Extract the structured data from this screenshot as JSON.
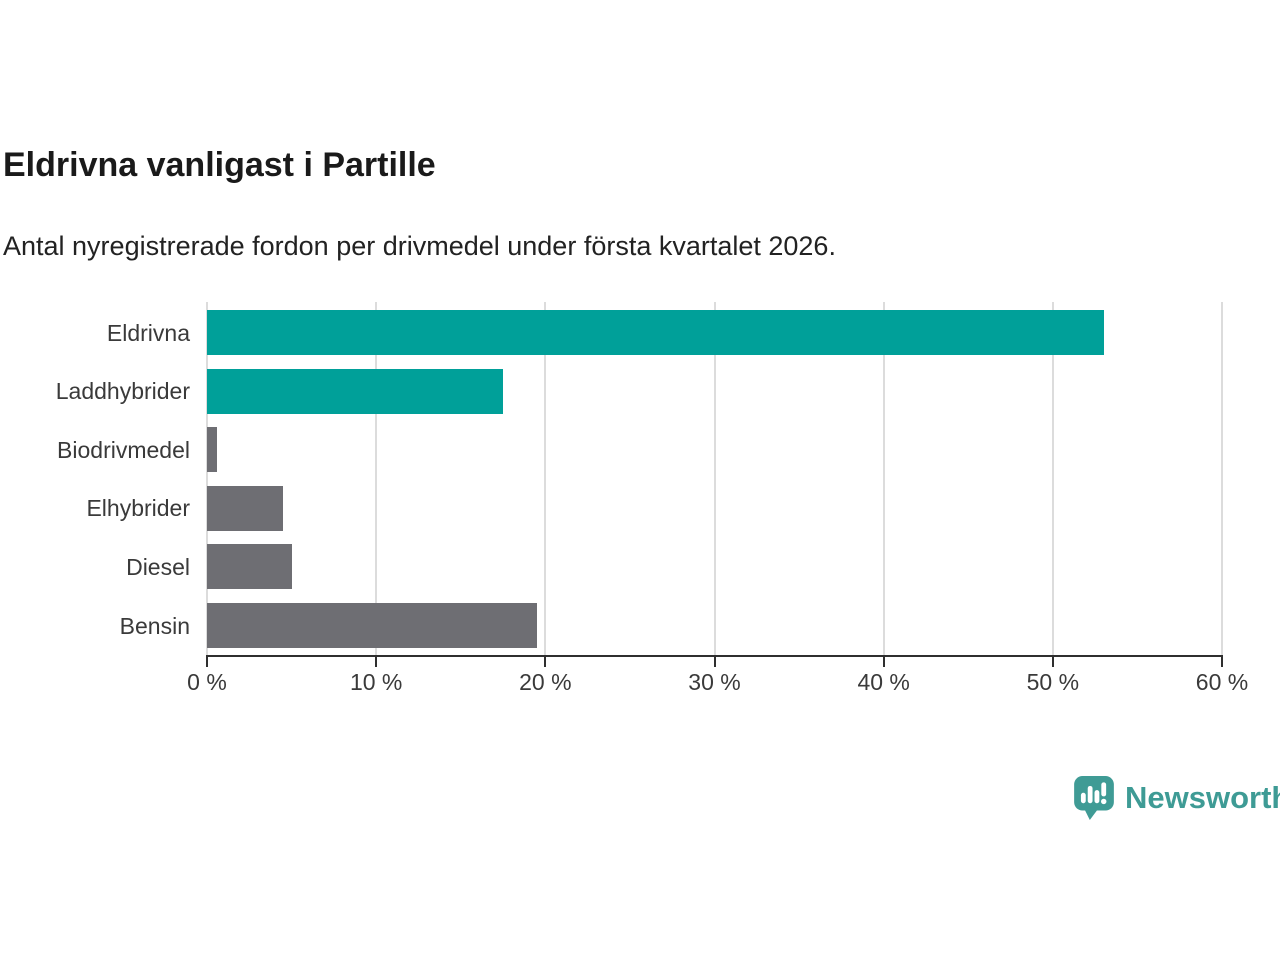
{
  "title": "Eldrivna vanligast i Partille",
  "subtitle": "Antal nyregistrerade fordon per drivmedel under första kvartalet 2026.",
  "logo": {
    "text": "Newsworthy",
    "color": "#3e9b95",
    "icon": "newsworthy-speech-bubble-bar-chart-icon"
  },
  "colors": {
    "accent_teal": "#00a099",
    "neutral_gray": "#6e6e73",
    "axis": "#2f2f2f",
    "gridline": "#dcdcdc",
    "title_text": "#1a1a1a",
    "label_text": "#3a3a3a"
  },
  "chart_data": {
    "type": "bar",
    "orientation": "horizontal",
    "title": "Eldrivna vanligast i Partille",
    "subtitle": "Antal nyregistrerade fordon per drivmedel under första kvartalet 2026.",
    "categories": [
      "Eldrivna",
      "Laddhybrider",
      "Biodrivmedel",
      "Elhybrider",
      "Diesel",
      "Bensin"
    ],
    "values": [
      53,
      17.5,
      0.6,
      4.5,
      5,
      19.5
    ],
    "unit": "%",
    "bar_colors": [
      "#00a099",
      "#00a099",
      "#6e6e73",
      "#6e6e73",
      "#6e6e73",
      "#6e6e73"
    ],
    "xlim": [
      0,
      60
    ],
    "x_ticks": {
      "values": [
        0,
        10,
        20,
        30,
        40,
        50,
        60
      ],
      "labels": [
        "0 %",
        "10 %",
        "20 %",
        "30 %",
        "40 %",
        "50 %",
        "60 %"
      ]
    },
    "grid": true,
    "legend": false
  }
}
